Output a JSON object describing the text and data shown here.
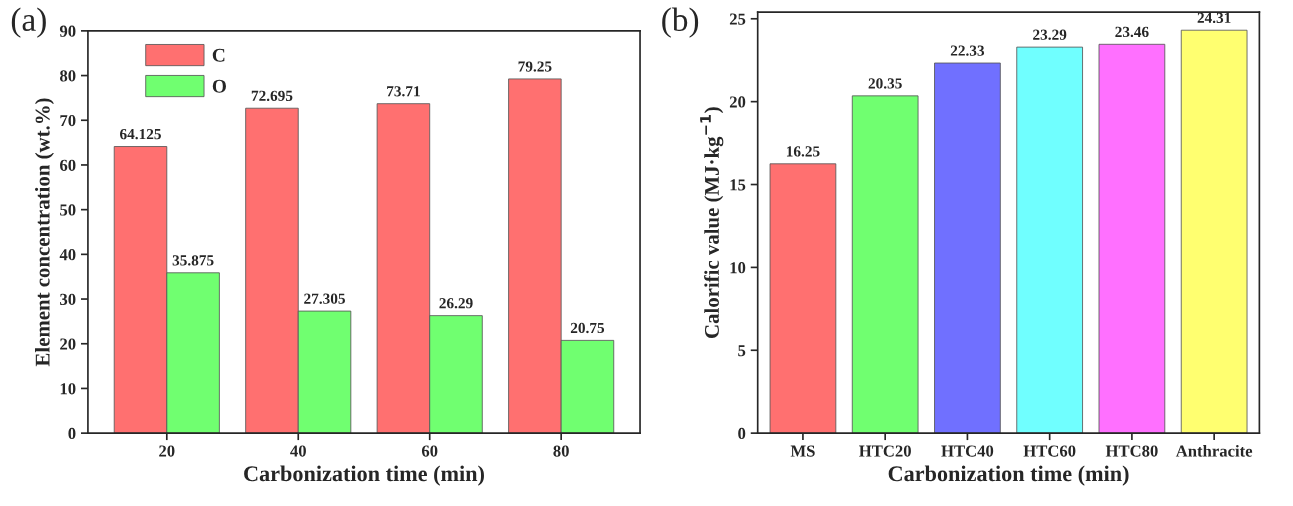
{
  "chart_data": [
    {
      "type": "bar",
      "xlabel": "Carbonization time (min)",
      "ylabel": "Element concentration (wt.%)",
      "annotations": [
        "(a)"
      ],
      "categories": [
        "20",
        "40",
        "60",
        "80"
      ],
      "series": [
        {
          "name": "C",
          "color": "#ff7070",
          "values": [
            64.125,
            72.695,
            73.71,
            79.25
          ]
        },
        {
          "name": "O",
          "color": "#70ff70",
          "values": [
            35.875,
            27.305,
            26.29,
            20.75
          ]
        }
      ],
      "ylim": [
        0,
        90
      ],
      "yticks": [
        0,
        10,
        20,
        30,
        40,
        50,
        60,
        70,
        80,
        90
      ],
      "data_labels": true,
      "legend": "top left",
      "grid": false
    },
    {
      "type": "bar",
      "xlabel": "Carbonization time (min)",
      "ylabel": "Calorific value (MJ·kg$^{−1}$)",
      "annotations": [
        "(b)"
      ],
      "categories": [
        "MS",
        "HTC20",
        "HTC40",
        "HTC60",
        "HTC80",
        "Anthracite"
      ],
      "values": [
        16.25,
        20.35,
        22.33,
        23.29,
        23.46,
        24.31
      ],
      "colors": [
        "#ff7070",
        "#70ff70",
        "#7070ff",
        "#70ffff",
        "#ff70ff",
        "#ffff70"
      ],
      "ylim": [
        0,
        25.4
      ],
      "yticks": [
        0,
        5,
        10,
        15,
        20,
        25
      ],
      "data_labels": true,
      "grid": false
    }
  ]
}
